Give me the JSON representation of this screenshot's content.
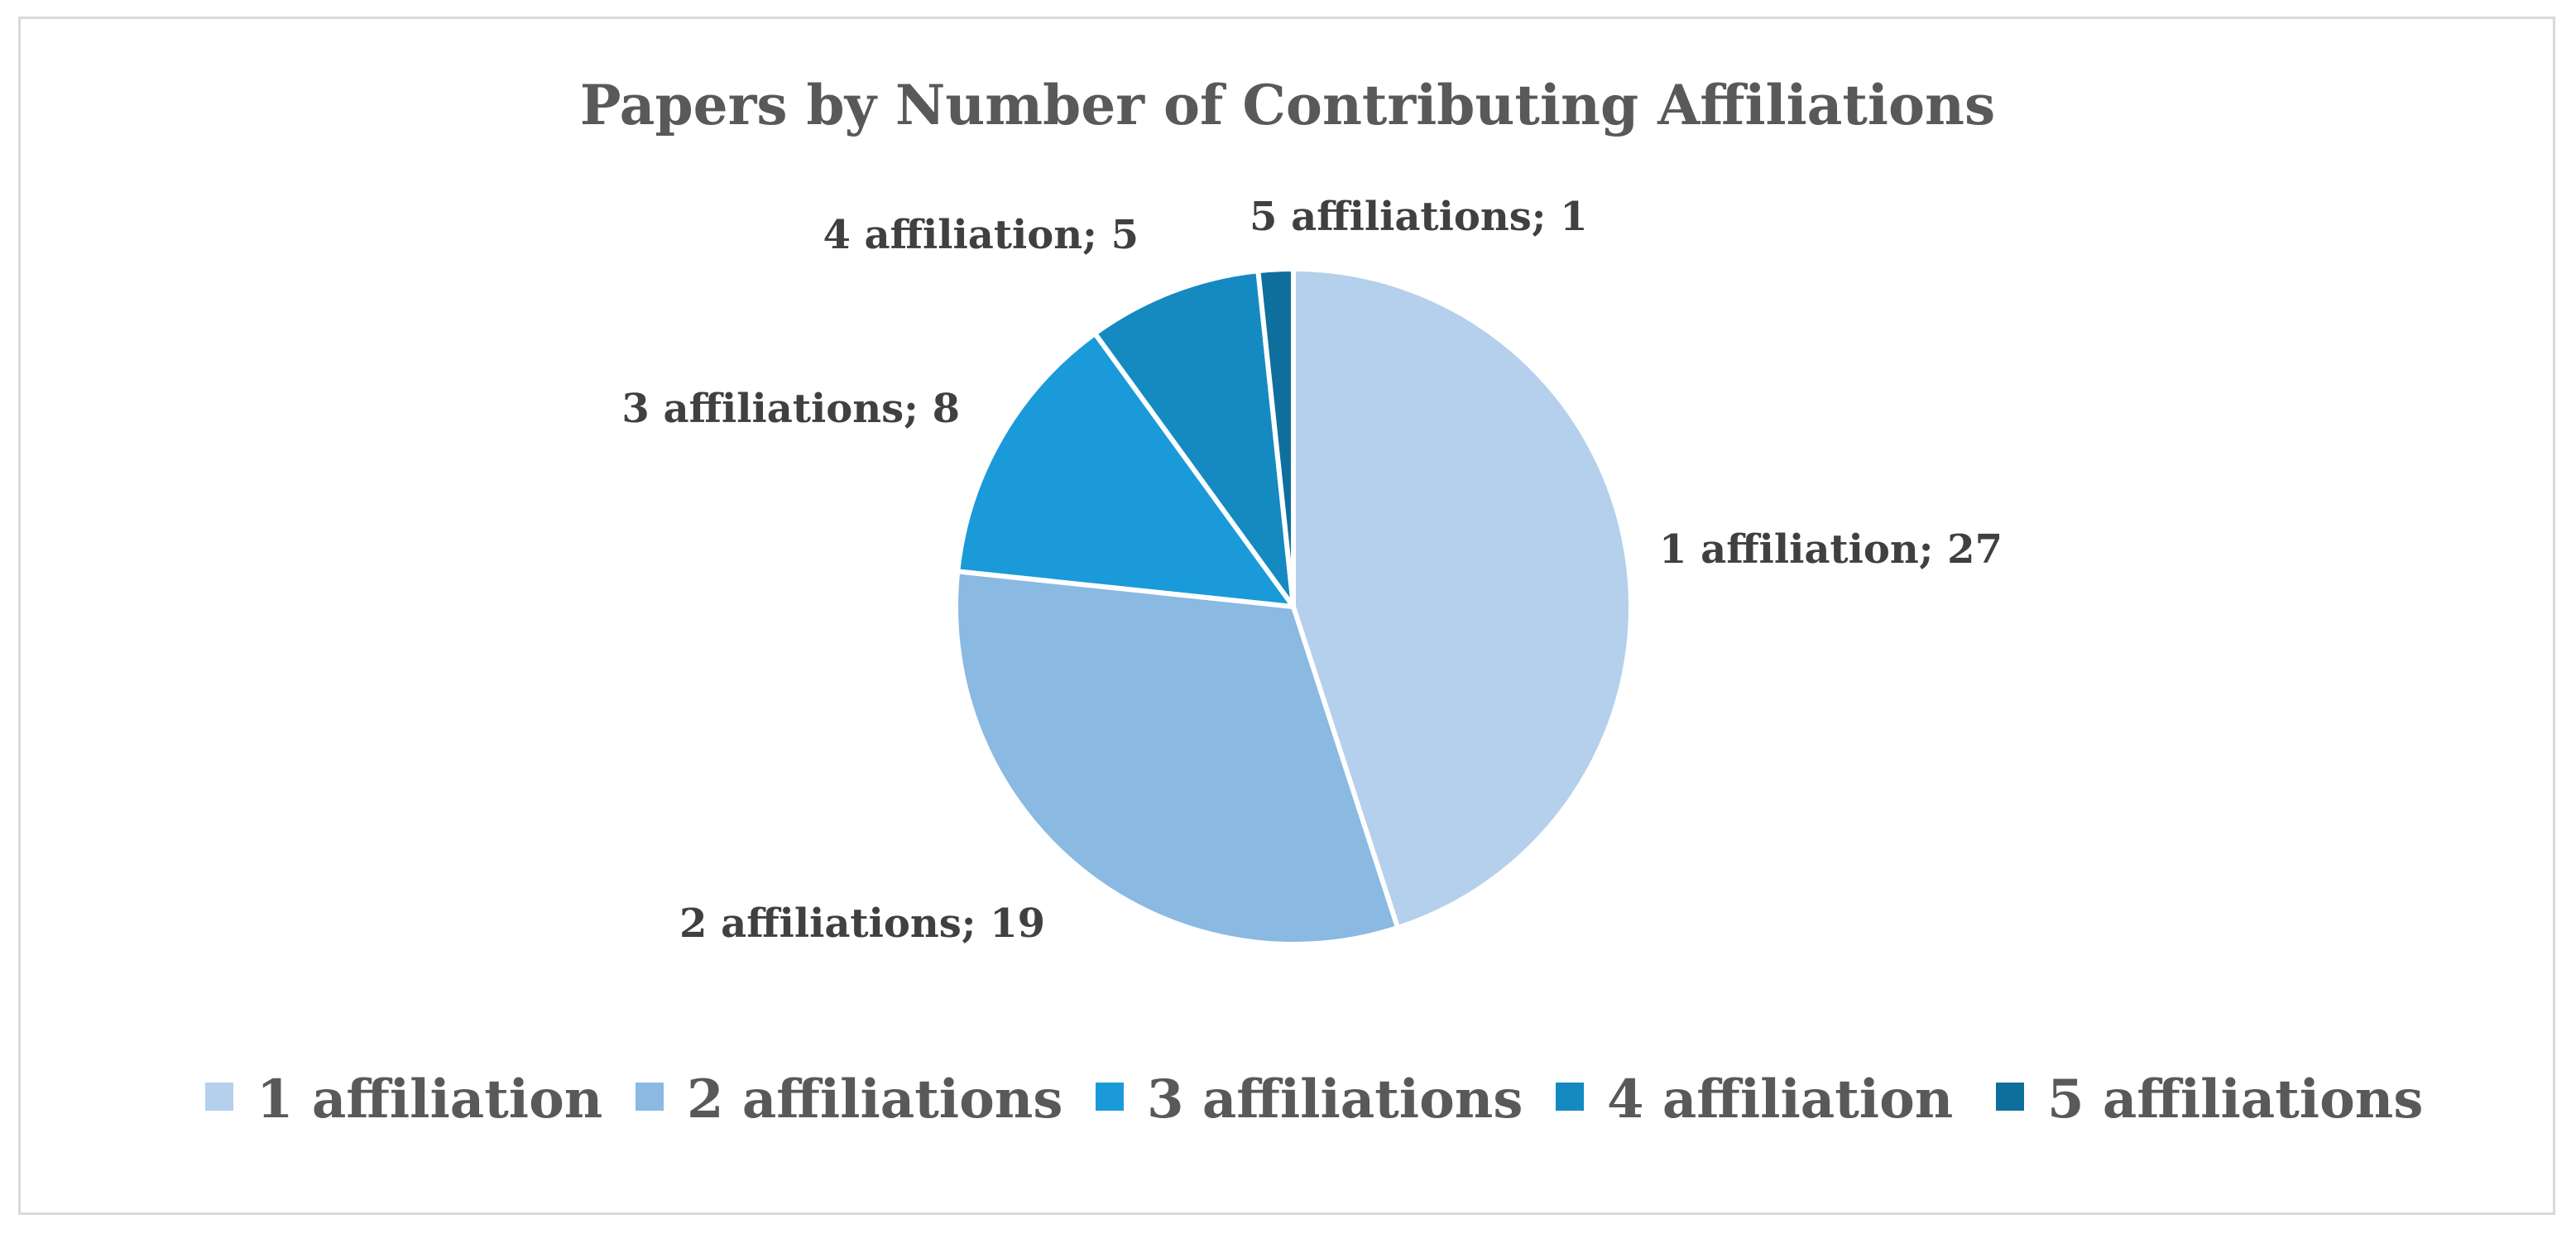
{
  "chart_data": {
    "type": "pie",
    "title": "Papers by Number of Contributing Affiliations",
    "categories": [
      "1 affiliation",
      "2 affiliations",
      "3 affiliations",
      "4 affiliation",
      "5 affiliations"
    ],
    "values": [
      27,
      19,
      8,
      5,
      1
    ],
    "data_labels": [
      "1 affiliation; 27",
      "2 affiliations; 19",
      "3 affiliations; 8",
      "4 affiliation; 5",
      "5 affiliations; 1"
    ],
    "colors": [
      "#b4d0ec",
      "#8ab9e2",
      "#1a9ad8",
      "#148ac1",
      "#0f6f9c"
    ],
    "start_angle_deg": 0,
    "direction": "clockwise",
    "legend": {
      "position": "bottom",
      "entries": [
        "1 affiliation",
        "2 affiliations",
        "3 affiliations",
        "4 affiliation",
        "5 affiliations"
      ]
    }
  }
}
